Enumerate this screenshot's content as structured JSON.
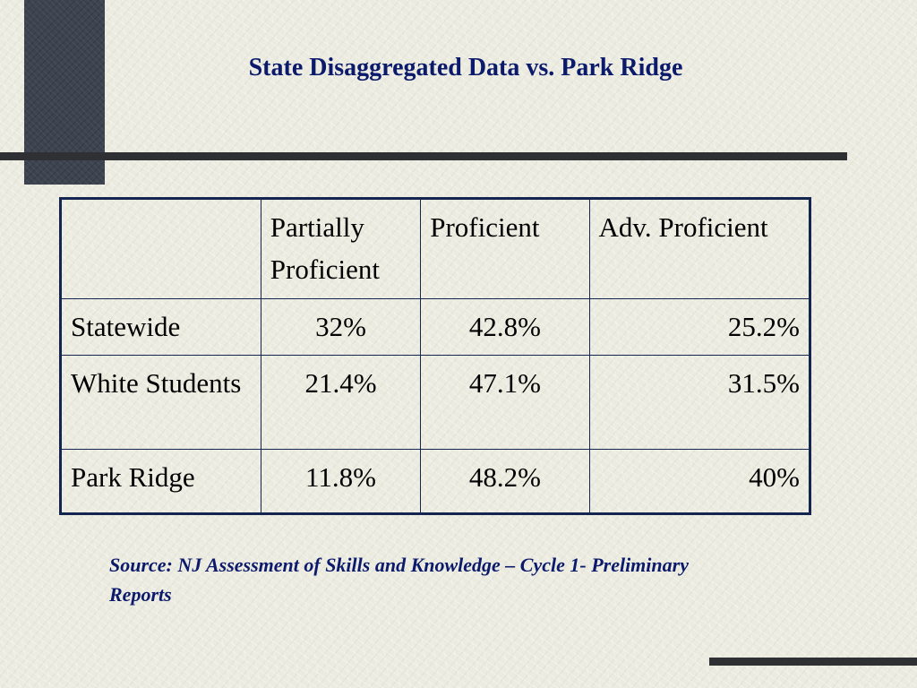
{
  "slide": {
    "title": "State Disaggregated Data vs. Park Ridge",
    "source_note": "Source: NJ Assessment of Skills and Knowledge – Cycle 1- Preliminary Reports"
  },
  "table": {
    "headers": [
      "",
      "Partially Proficient",
      "Proficient",
      "Adv. Proficient"
    ],
    "rows": [
      {
        "label": "Statewide",
        "partially_proficient": "32%",
        "proficient": "42.8%",
        "adv_proficient": "25.2%"
      },
      {
        "label": "White Students",
        "partially_proficient": "21.4%",
        "proficient": "47.1%",
        "adv_proficient": "31.5%"
      },
      {
        "label": "Park Ridge",
        "partially_proficient": "11.8%",
        "proficient": "48.2%",
        "adv_proficient": "40%"
      }
    ]
  },
  "colors": {
    "background": "#ecebe0",
    "accent_block": "#3d4450",
    "title_text": "#0b1a6b",
    "table_border": "#142650"
  }
}
